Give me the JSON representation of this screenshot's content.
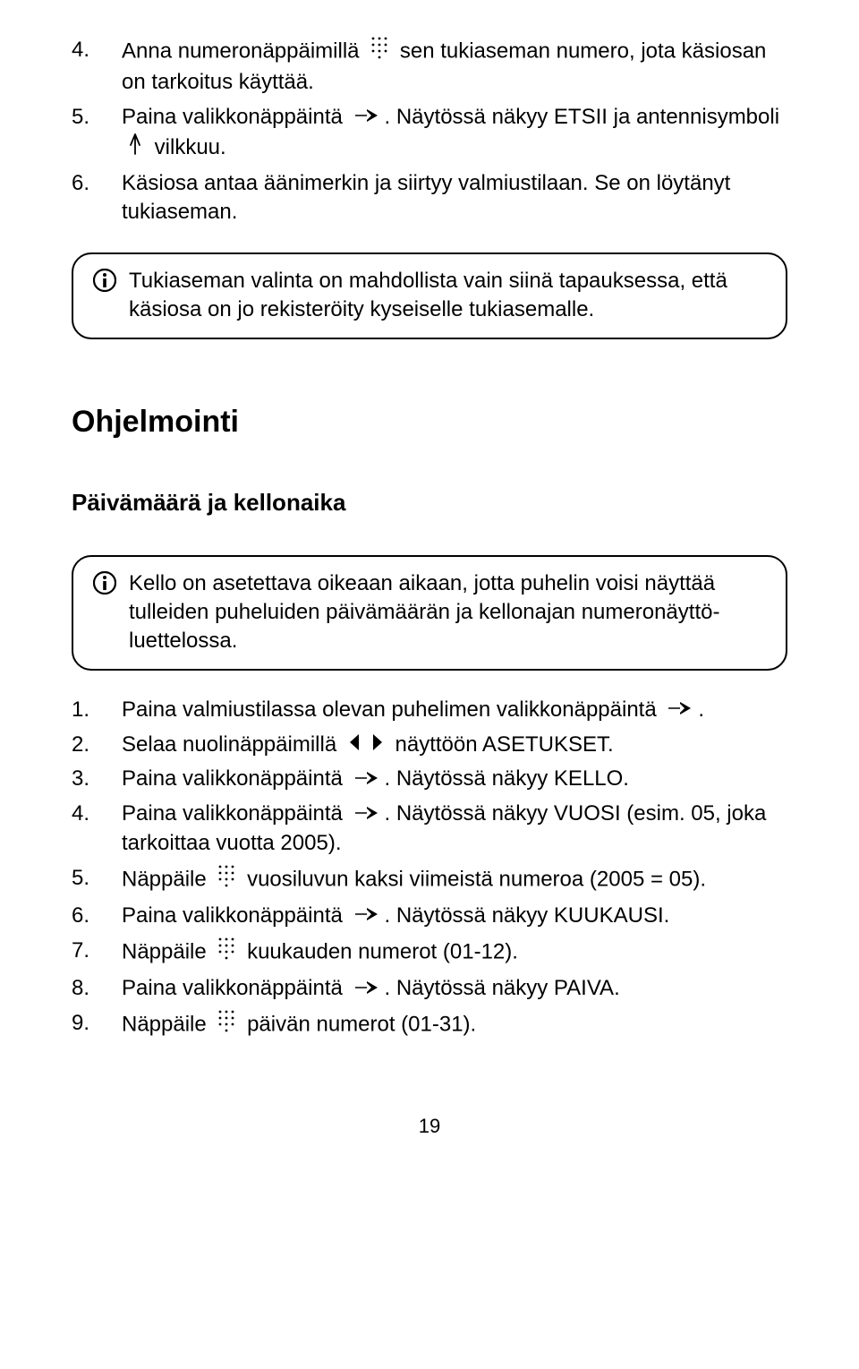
{
  "list_a": {
    "items": [
      {
        "num": "4.",
        "pre": "Anna numeronäppäimillä ",
        "post_icon": " sen tukiaseman numero, jota käsiosan on tarkoitus käyttää.",
        "icon": "keypad"
      },
      {
        "num": "5.",
        "pre": "Paina valikkonäppäintä ",
        "post_icon": ". Näytössä näkyy ETSII ja antennisymboli ",
        "icon": "menu-arrow",
        "trail_icon": "antenna",
        "trail_post": " vilkkuu."
      },
      {
        "num": "6.",
        "pre": "Käsiosa antaa äänimerkin ja siirtyy valmiustilaan. Se on löytänyt tukiaseman."
      }
    ]
  },
  "info1": "Tukiaseman valinta on mahdollista vain siinä tapauksessa, että käsiosa on jo rekisteröity kyseiselle tukiasemalle.",
  "section_title": "Ohjelmointi",
  "subsection_title": "Päivämäärä ja kellonaika",
  "info2": "Kello on asetettava oikeaan aikaan, jotta puhelin voisi näyttää tulleiden puheluiden päivämäärän ja kellonajan numeronäyttö-luettelossa.",
  "list_b": {
    "items": [
      {
        "num": "1.",
        "pre": "Paina valmiustilassa olevan puhelimen valikkonäppäintä ",
        "icon": "menu-arrow",
        "post_icon": "."
      },
      {
        "num": "2.",
        "pre": "Selaa nuolinäppäimillä ",
        "icon": "left-arrow",
        "icon2": "right-arrow",
        "post_icon": " näyttöön ASETUKSET."
      },
      {
        "num": "3.",
        "pre": "Paina valikkonäppäintä ",
        "icon": "menu-arrow",
        "post_icon": ". Näytössä näkyy KELLO."
      },
      {
        "num": "4.",
        "pre": "Paina valikkonäppäintä ",
        "icon": "menu-arrow",
        "post_icon": ". Näytössä näkyy VUOSI (esim. 05, joka tarkoittaa vuotta 2005)."
      },
      {
        "num": "5.",
        "pre": "Näppäile ",
        "icon": "keypad",
        "post_icon": " vuosiluvun kaksi viimeistä numeroa (2005 = 05)."
      },
      {
        "num": "6.",
        "pre": "Paina valikkonäppäintä ",
        "icon": "menu-arrow",
        "post_icon": ". Näytössä näkyy KUUKAUSI."
      },
      {
        "num": "7.",
        "pre": "Näppäile ",
        "icon": "keypad",
        "post_icon": " kuukauden numerot (01-12)."
      },
      {
        "num": "8.",
        "pre": "Paina valikkonäppäintä ",
        "icon": "menu-arrow",
        "post_icon": ". Näytössä näkyy PAIVA."
      },
      {
        "num": "9.",
        "pre": "Näppäile ",
        "icon": "keypad",
        "post_icon": " päivän numerot (01-31)."
      }
    ]
  },
  "page_number": "19"
}
